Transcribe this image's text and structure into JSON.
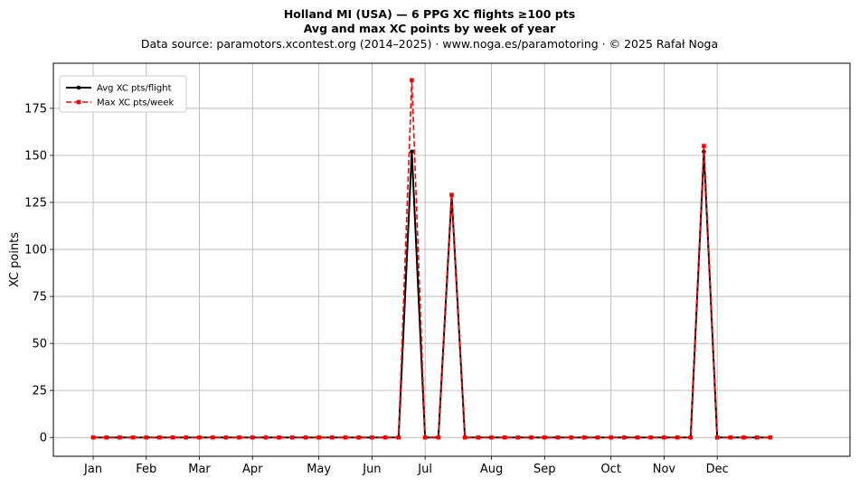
{
  "chart_data": {
    "type": "line",
    "title": "Holland MI (USA)  —  6 PPG XC flights ≥100 pts",
    "subtitle": "Avg and max XC points by week of year",
    "source_line": "Data source: paramotors.xcontest.org (2014–2025)  ·  www.noga.es/paramotoring  ·  © 2025 Rafał Noga",
    "xlabel": "",
    "ylabel": "XC points",
    "xlim": [
      -3,
      57
    ],
    "ylim": [
      -10,
      199
    ],
    "yticks": [
      0,
      25,
      50,
      75,
      100,
      125,
      150,
      175
    ],
    "xticks": [
      {
        "week": 0,
        "label": "Jan"
      },
      {
        "week": 4,
        "label": "Feb"
      },
      {
        "week": 8,
        "label": "Mar"
      },
      {
        "week": 12,
        "label": "Apr"
      },
      {
        "week": 17,
        "label": "May"
      },
      {
        "week": 21,
        "label": "Jun"
      },
      {
        "week": 25,
        "label": "Jul"
      },
      {
        "week": 30,
        "label": "Aug"
      },
      {
        "week": 34,
        "label": "Sep"
      },
      {
        "week": 39,
        "label": "Oct"
      },
      {
        "week": 43,
        "label": "Nov"
      },
      {
        "week": 47,
        "label": "Dec"
      }
    ],
    "grid": true,
    "legend_position": "top-left",
    "x": [
      0,
      1,
      2,
      3,
      4,
      5,
      6,
      7,
      8,
      9,
      10,
      11,
      12,
      13,
      14,
      15,
      16,
      17,
      18,
      19,
      20,
      21,
      22,
      23,
      24,
      25,
      26,
      27,
      28,
      29,
      30,
      31,
      32,
      33,
      34,
      35,
      36,
      37,
      38,
      39,
      40,
      41,
      42,
      43,
      44,
      45,
      46,
      47,
      48,
      49,
      50,
      51
    ],
    "series": [
      {
        "name": "Avg XC pts/flight",
        "color": "#000000",
        "linestyle": "solid",
        "marker": "circle",
        "values": [
          0,
          0,
          0,
          0,
          0,
          0,
          0,
          0,
          0,
          0,
          0,
          0,
          0,
          0,
          0,
          0,
          0,
          0,
          0,
          0,
          0,
          0,
          0,
          0,
          152,
          0,
          0,
          129,
          0,
          0,
          0,
          0,
          0,
          0,
          0,
          0,
          0,
          0,
          0,
          0,
          0,
          0,
          0,
          0,
          0,
          0,
          152,
          0,
          0,
          0,
          0,
          0
        ]
      },
      {
        "name": "Max XC pts/week",
        "color": "#ff0000",
        "linestyle": "dashed",
        "marker": "square",
        "values": [
          0,
          0,
          0,
          0,
          0,
          0,
          0,
          0,
          0,
          0,
          0,
          0,
          0,
          0,
          0,
          0,
          0,
          0,
          0,
          0,
          0,
          0,
          0,
          0,
          190,
          0,
          0,
          129,
          0,
          0,
          0,
          0,
          0,
          0,
          0,
          0,
          0,
          0,
          0,
          0,
          0,
          0,
          0,
          0,
          0,
          0,
          155,
          0,
          0,
          0,
          0,
          0
        ]
      }
    ]
  }
}
